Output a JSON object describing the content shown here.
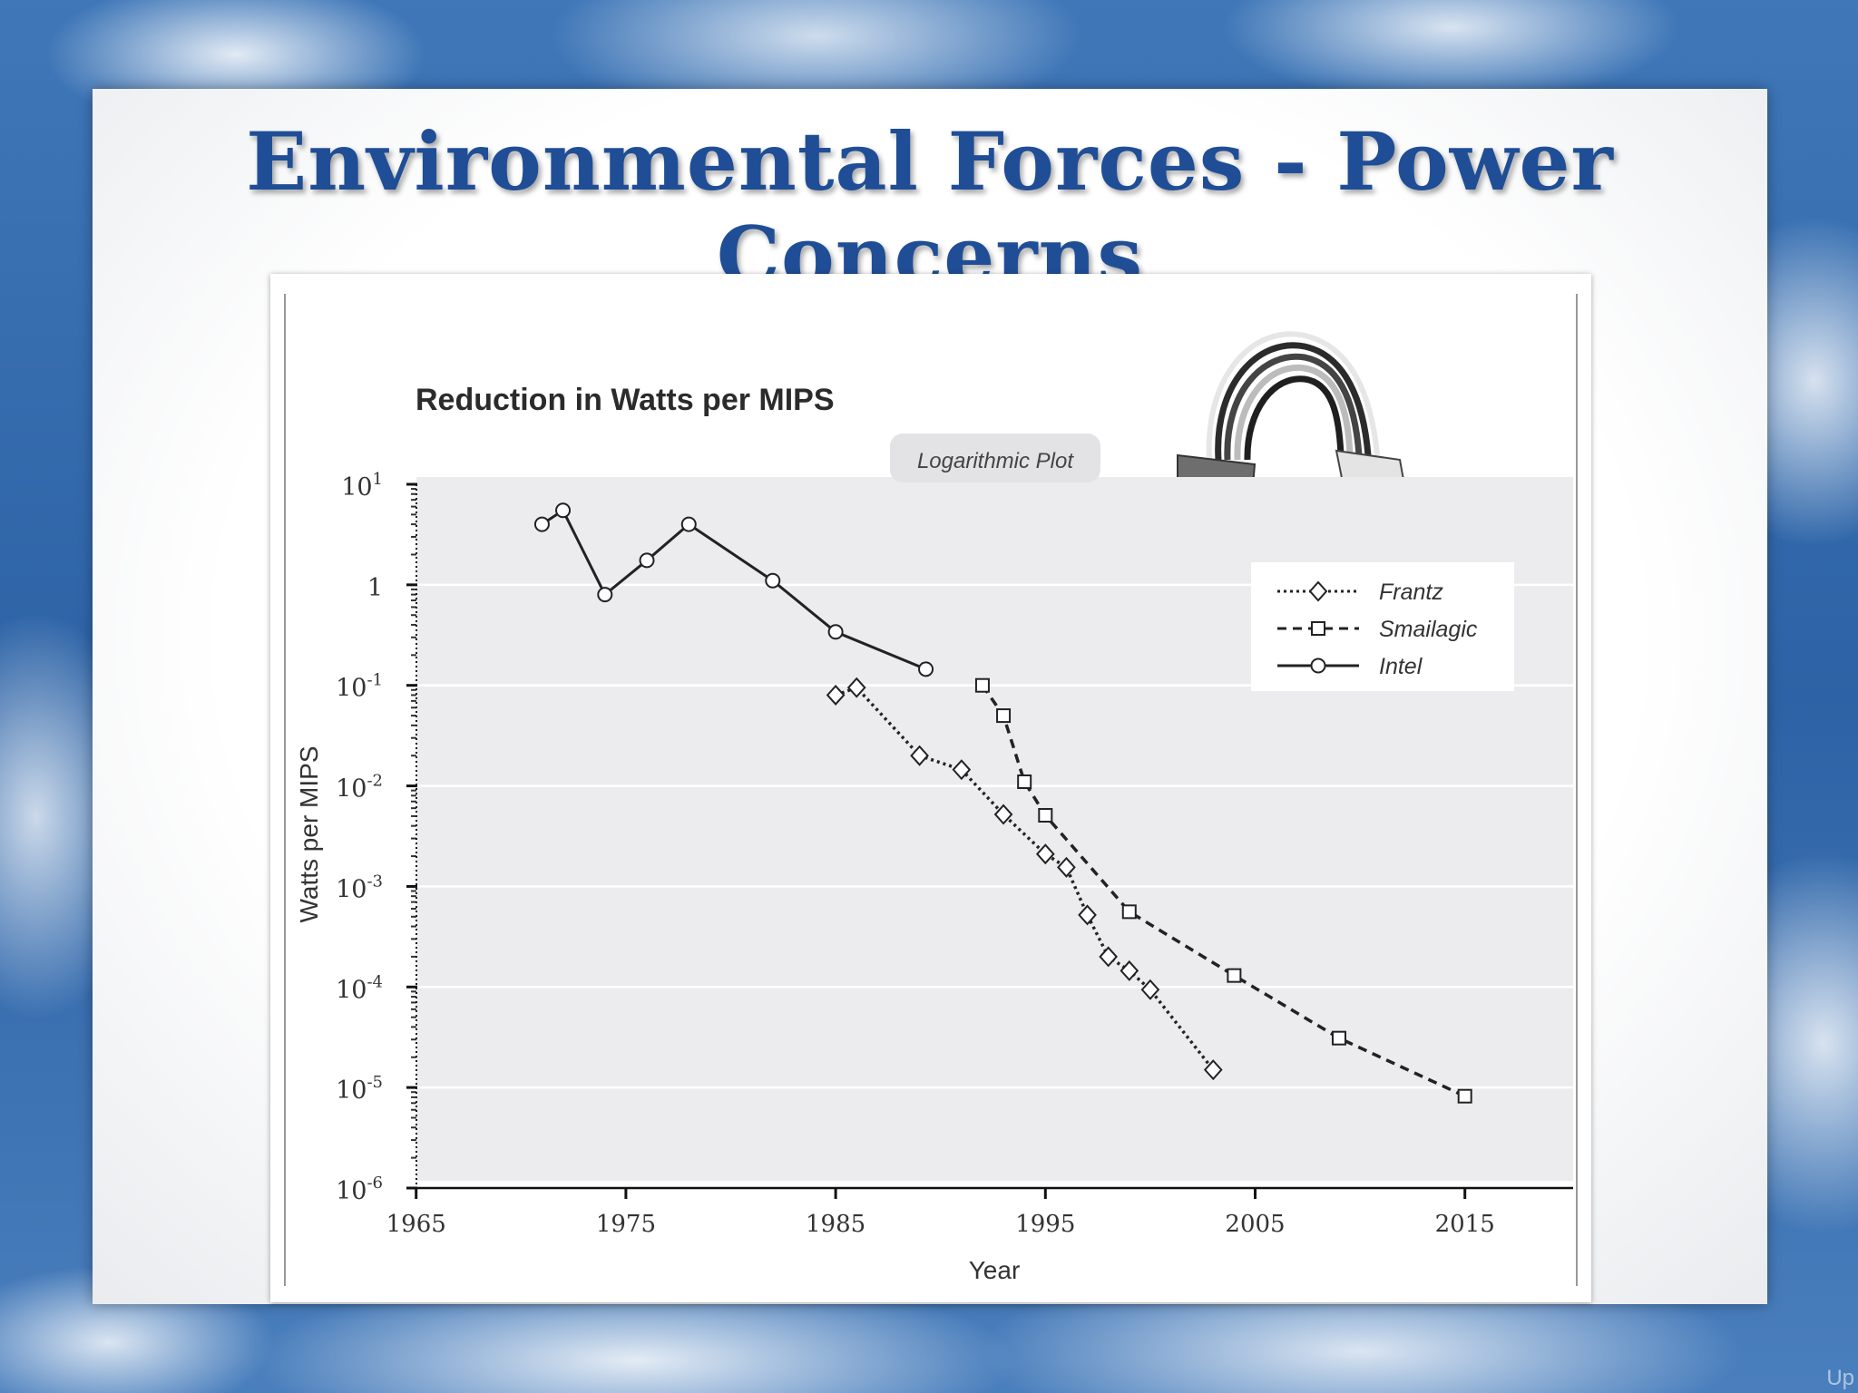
{
  "slide": {
    "title": "Environmental Forces - Power Concerns",
    "corner_text": "Up"
  },
  "illustration": {
    "icon": "power-connector-cable-icon"
  },
  "chart_data": {
    "type": "line",
    "title": "Reduction in Watts per MIPS",
    "badge": "Logarithmic Plot",
    "xlabel": "Year",
    "ylabel": "Watts per MIPS",
    "xlim": [
      1965,
      2020
    ],
    "ylim": [
      1e-06,
      10
    ],
    "y_scale": "log",
    "x_ticks": [
      "1965",
      "1975",
      "1985",
      "1995",
      "2005",
      "2015"
    ],
    "y_ticks": [
      {
        "base": "10",
        "exp": "1",
        "value": 10
      },
      {
        "base": "1",
        "exp": "",
        "value": 1
      },
      {
        "base": "10",
        "exp": "-1",
        "value": 0.1
      },
      {
        "base": "10",
        "exp": "-2",
        "value": 0.01
      },
      {
        "base": "10",
        "exp": "-3",
        "value": 0.001
      },
      {
        "base": "10",
        "exp": "-4",
        "value": 0.0001
      },
      {
        "base": "10",
        "exp": "-5",
        "value": 1e-05
      },
      {
        "base": "10",
        "exp": "-6",
        "value": 1e-06
      }
    ],
    "grid": true,
    "legend_position": "top-right",
    "series": [
      {
        "name": "Frantz",
        "line": "dotted",
        "marker": "diamond",
        "x": [
          1985,
          1986,
          1989,
          1991,
          1993,
          1995,
          1996,
          1997,
          1998,
          1999,
          2000,
          2003
        ],
        "y": [
          0.08,
          0.095,
          0.02,
          0.0145,
          0.0052,
          0.0021,
          0.00155,
          0.00052,
          0.0002,
          0.000145,
          9.4e-05,
          1.5e-05
        ]
      },
      {
        "name": "Smailagic",
        "line": "dashed",
        "marker": "square",
        "x": [
          1992,
          1993,
          1994,
          1995,
          1999,
          2004,
          2009,
          2015
        ],
        "y": [
          0.1,
          0.05,
          0.011,
          0.0051,
          0.00056,
          0.00013,
          3.1e-05,
          8.2e-06
        ]
      },
      {
        "name": "Intel",
        "line": "solid",
        "marker": "circle",
        "x": [
          1971,
          1972,
          1974,
          1976,
          1978,
          1982,
          1985,
          1989.3
        ],
        "y": [
          4,
          5.5,
          0.8,
          1.75,
          4,
          1.1,
          0.34,
          0.145
        ]
      }
    ]
  }
}
